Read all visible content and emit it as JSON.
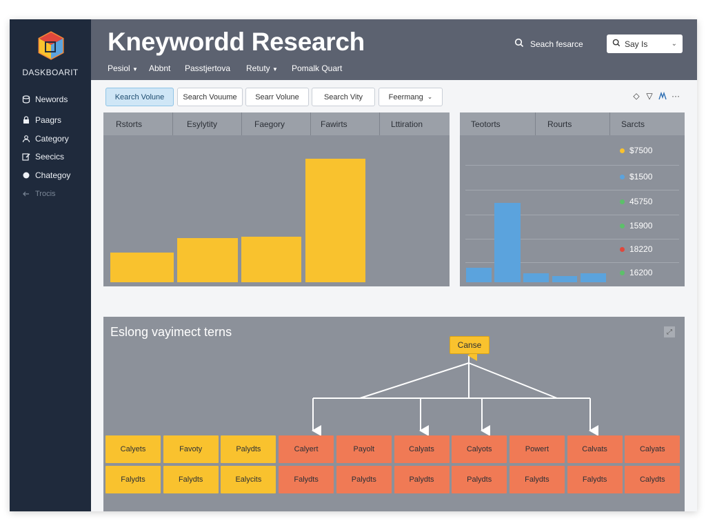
{
  "sidebar": {
    "brand": "DASKBOARIT",
    "items": [
      {
        "label": "Newords",
        "icon": "database-icon"
      },
      {
        "label": "Paagrs",
        "icon": "lock-icon"
      },
      {
        "label": "Category",
        "icon": "people-icon"
      },
      {
        "label": "Seecics",
        "icon": "edit-icon"
      },
      {
        "label": "Chategoy",
        "icon": "circle-icon"
      },
      {
        "label": "Trocis",
        "icon": "back-arrow-icon"
      }
    ]
  },
  "header": {
    "title": "Kneywordd Research",
    "nav": [
      "Pesiol",
      "Abbnt",
      "Passtjertova",
      "Retuty",
      "Pomalk Quart"
    ],
    "search_link": "Seach fesarce",
    "search_select": "Say Is"
  },
  "tabs": [
    "Kearch Volune",
    "Search Vouume",
    "Searr Volune",
    "Search Vity",
    "Feermang"
  ],
  "bar_panel": {
    "headers": [
      "Rstorts",
      "Esylytity",
      "Faegory",
      "Fawirts",
      "Lttiration"
    ]
  },
  "trend_panel": {
    "headers": [
      "Teotorts",
      "Rourts",
      "Sarcts"
    ],
    "legend": [
      {
        "value": "$7500",
        "color": "#f9c22e"
      },
      {
        "value": "$1500",
        "color": "#5ba3dd"
      },
      {
        "value": "45750",
        "color": "#5cc06a"
      },
      {
        "value": "15900",
        "color": "#5cc06a"
      },
      {
        "value": "18220",
        "color": "#e0473c"
      },
      {
        "value": "16200",
        "color": "#5cc06a"
      }
    ]
  },
  "chart_data": [
    {
      "type": "bar",
      "categories": [
        "",
        "",
        "",
        ""
      ],
      "values": [
        20,
        30,
        31,
        84
      ],
      "ylim": [
        0,
        100
      ],
      "color": "#f9c22e"
    },
    {
      "type": "bar",
      "categories": [
        "",
        "",
        "",
        "",
        ""
      ],
      "values": [
        10,
        54,
        6,
        4,
        6
      ],
      "ylim": [
        0,
        100
      ],
      "color": "#5ba3dd"
    }
  ],
  "tree": {
    "title": "Eslong vayimect terns",
    "root": "Canse",
    "row1": [
      {
        "label": "Calyets",
        "color": "y"
      },
      {
        "label": "Favoty",
        "color": "y"
      },
      {
        "label": "Palydts",
        "color": "y"
      },
      {
        "label": "Calyert",
        "color": "o"
      },
      {
        "label": "Payolt",
        "color": "o"
      },
      {
        "label": "Calyats",
        "color": "o"
      },
      {
        "label": "Calyots",
        "color": "o"
      },
      {
        "label": "Powert",
        "color": "o"
      },
      {
        "label": "Calvats",
        "color": "o"
      },
      {
        "label": "Calyats",
        "color": "o"
      }
    ],
    "row2": [
      {
        "label": "Falydts",
        "color": "y"
      },
      {
        "label": "Falydts",
        "color": "y"
      },
      {
        "label": "Ealycits",
        "color": "y"
      },
      {
        "label": "Falydts",
        "color": "o"
      },
      {
        "label": "Palydts",
        "color": "o"
      },
      {
        "label": "Palydts",
        "color": "o"
      },
      {
        "label": "Palydts",
        "color": "o"
      },
      {
        "label": "Falydts",
        "color": "o"
      },
      {
        "label": "Falydts",
        "color": "o"
      },
      {
        "label": "Calydts",
        "color": "o"
      }
    ]
  }
}
